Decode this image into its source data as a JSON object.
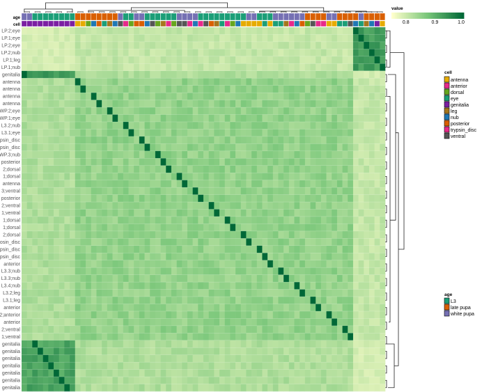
{
  "chart_data": {
    "type": "heatmap",
    "title": "",
    "row_labels": [
      "LP.2;eye",
      "LP.1;eye",
      "LP.2;eye",
      "LP.2;nub",
      "LP.1;leg",
      "LP.1;nub",
      "genitalia",
      "antenna",
      "antenna",
      "antenna",
      "antenna",
      "WP.2;eye",
      "WP.1;eye",
      "L3.2;nub",
      "L3.1;eye",
      "psin_disc",
      "psin_disc",
      "WP.3;nub",
      "posterior",
      "2;dorsal",
      "1;dorsal",
      "antenna",
      "3;ventral",
      "posterior",
      "2;ventral",
      "1;ventral",
      "1;dorsal",
      "1;dorsal",
      "2;dorsal",
      "osin_disc",
      "psin_disc",
      "psin_disc",
      "anterior",
      "L3.3;nub",
      "L3.3;nub",
      "L3.4;nub",
      "L3.2;leg",
      "L3.1;leg",
      "anterior",
      "2;anterior",
      "anterior",
      "2;ventral",
      "1;ventral",
      "genitalia",
      "genitalia",
      "genitalia",
      "genitalia",
      "genitalia",
      "genitalia",
      "genitalia"
    ],
    "annotations": {
      "top": [
        {
          "name": "age"
        },
        {
          "name": "cell"
        }
      ]
    },
    "col_age": [
      "white pupa",
      "white pupa",
      "L3",
      "L3",
      "L3",
      "L3",
      "L3",
      "L3",
      "L3",
      "L3",
      "late pupa",
      "late pupa",
      "late pupa",
      "late pupa",
      "late pupa",
      "late pupa",
      "late pupa",
      "late pupa",
      "white pupa",
      "L3",
      "L3",
      "white pupa",
      "white pupa",
      "L3",
      "L3",
      "L3",
      "L3",
      "L3",
      "L3",
      "white pupa",
      "white pupa",
      "white pupa",
      "white pupa",
      "L3",
      "L3",
      "L3",
      "L3",
      "L3",
      "L3",
      "L3",
      "L3",
      "L3",
      "white pupa",
      "white pupa",
      "L3",
      "L3",
      "L3",
      "white pupa",
      "white pupa",
      "white pupa",
      "white pupa",
      "white pupa",
      "white pupa",
      "late pupa",
      "late pupa",
      "late pupa",
      "late pupa",
      "white pupa",
      "white pupa",
      "late pupa",
      "late pupa",
      "late pupa",
      "late pupa",
      "white pupa",
      "late pupa",
      "late pupa",
      "late pupa",
      "late pupa"
    ],
    "col_cell": [
      "genitalia",
      "genitalia",
      "genitalia",
      "genitalia",
      "genitalia",
      "genitalia",
      "genitalia",
      "genitalia",
      "genitalia",
      "genitalia",
      "antenna",
      "antenna",
      "dorsal",
      "nub",
      "posterior",
      "eye",
      "leg",
      "nub",
      "ventral",
      "anterior",
      "dorsal",
      "posterior",
      "posterior",
      "nub",
      "ventral",
      "dorsal",
      "leg",
      "anterior",
      "dorsal",
      "ventral",
      "ventral",
      "trypsin_disc",
      "nub",
      "trypsin_disc",
      "ventral",
      "posterior",
      "leg",
      "eye",
      "anterior",
      "dorsal",
      "nub",
      "antenna",
      "antenna",
      "antenna",
      "antenna",
      "eye",
      "antenna",
      "eye",
      "eye",
      "leg",
      "trypsin_disc",
      "nub",
      "posterior",
      "dorsal",
      "ventral",
      "trypsin_disc",
      "anterior",
      "antenna",
      "antenna",
      "eye",
      "eye",
      "ventral",
      "nub",
      "eye",
      "leg",
      "nub",
      "genitalia",
      "antenna"
    ],
    "value_range": [
      0.75,
      1.0
    ],
    "color_scale": {
      "low": "#ffffcc",
      "mid": "#78c679",
      "high": "#006837"
    },
    "legend": {
      "value": {
        "title": "value",
        "ticks": [
          "0.8",
          "0.9",
          "1.0"
        ]
      },
      "cell": {
        "title": "cell",
        "items": [
          {
            "label": "antenna",
            "color": "#e6ab02"
          },
          {
            "label": "anterior",
            "color": "#e7298a"
          },
          {
            "label": "dorsal",
            "color": "#66a61e"
          },
          {
            "label": "eye",
            "color": "#1b9e77"
          },
          {
            "label": "genitalia",
            "color": "#7b1fa2"
          },
          {
            "label": "leg",
            "color": "#a6761d"
          },
          {
            "label": "nub",
            "color": "#1f78b4"
          },
          {
            "label": "posterior",
            "color": "#d95f02"
          },
          {
            "label": "trypsin_disc",
            "color": "#e7298a"
          },
          {
            "label": "ventral",
            "color": "#555555"
          }
        ]
      },
      "age": {
        "title": "age",
        "items": [
          {
            "label": "L3",
            "color": "#1b9e77"
          },
          {
            "label": "late pupa",
            "color": "#d95f02"
          },
          {
            "label": "white pupa",
            "color": "#7570b3"
          }
        ]
      }
    },
    "blocks": [
      {
        "rows": [
          0,
          5
        ],
        "cols": [
          62,
          67
        ],
        "value": 0.93
      },
      {
        "rows": [
          6,
          6
        ],
        "cols": [
          0,
          9
        ],
        "value": 0.93
      },
      {
        "rows": [
          7,
          42
        ],
        "cols": [
          10,
          61
        ],
        "value": 0.85
      },
      {
        "rows": [
          43,
          49
        ],
        "cols": [
          0,
          9
        ],
        "value": 0.92
      }
    ],
    "cell_value_labels": "0.85"
  }
}
